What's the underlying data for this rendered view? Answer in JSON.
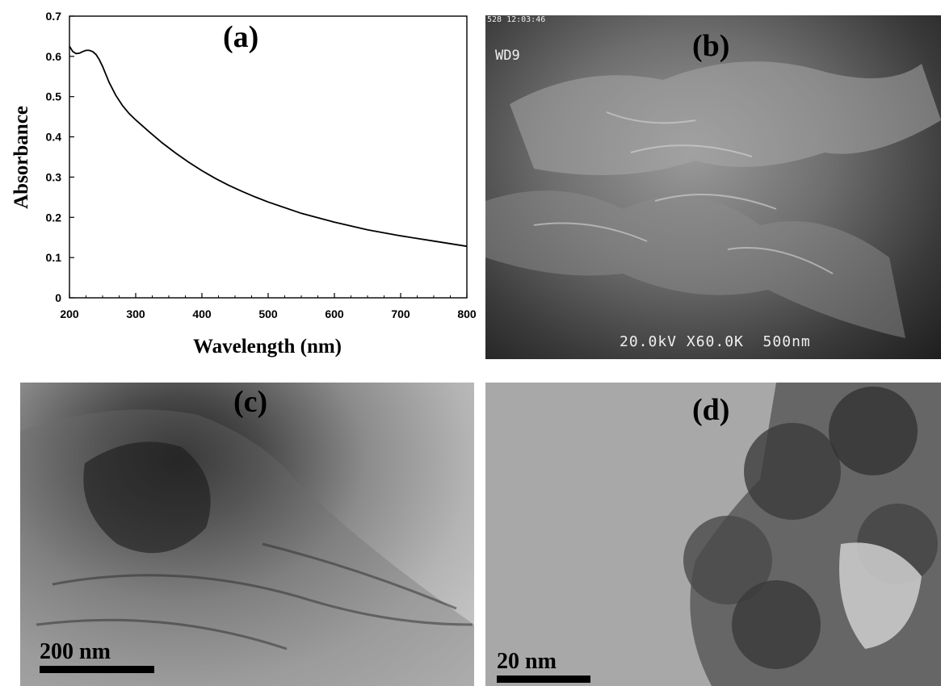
{
  "chart_data": {
    "type": "line",
    "title": "",
    "panel_label": "(a)",
    "xlabel": "Wavelength (nm)",
    "ylabel": "Absorbance",
    "xlim": [
      200,
      800
    ],
    "ylim": [
      0,
      0.7
    ],
    "x_ticks": [
      "200",
      "300",
      "400",
      "500",
      "600",
      "700",
      "800"
    ],
    "y_ticks": [
      "0",
      "0.1",
      "0.2",
      "0.3",
      "0.4",
      "0.5",
      "0.6",
      "0.7"
    ],
    "grid": false,
    "series": [
      {
        "x": [
          200,
          205,
          210,
          215,
          220,
          225,
          230,
          235,
          240,
          245,
          250,
          255,
          260,
          270,
          280,
          290,
          300,
          320,
          340,
          360,
          380,
          400,
          420,
          440,
          460,
          480,
          500,
          550,
          600,
          650,
          700,
          750,
          800
        ],
        "y": [
          0.625,
          0.612,
          0.607,
          0.608,
          0.612,
          0.615,
          0.615,
          0.612,
          0.605,
          0.592,
          0.575,
          0.555,
          0.535,
          0.503,
          0.478,
          0.458,
          0.442,
          0.413,
          0.385,
          0.36,
          0.337,
          0.316,
          0.297,
          0.28,
          0.265,
          0.251,
          0.238,
          0.21,
          0.188,
          0.169,
          0.154,
          0.141,
          0.128
        ],
        "color": "#000000"
      }
    ]
  },
  "panels": {
    "b": {
      "label": "(b)",
      "wd": "WD9",
      "timestamp": "528 12:03:46",
      "footer": "20.0kV X60.0K  500nm"
    },
    "c": {
      "label": "(c)",
      "scale": "200 nm"
    },
    "d": {
      "label": "(d)",
      "scale": "20 nm"
    }
  }
}
